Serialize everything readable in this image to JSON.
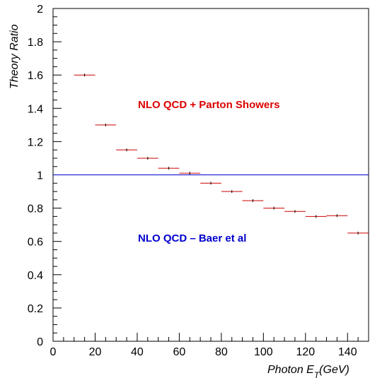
{
  "chart_data": {
    "type": "scatter",
    "xlabel_main": "Photon E",
    "xlabel_sub": "T",
    "xlabel_unit": "(GeV)",
    "ylabel": "Theory Ratio",
    "xlim": [
      0,
      150
    ],
    "ylim": [
      0,
      2
    ],
    "x_ticks": [
      "0",
      "20",
      "40",
      "60",
      "80",
      "100",
      "120",
      "140"
    ],
    "x_tick_values": [
      0,
      20,
      40,
      60,
      80,
      100,
      120,
      140
    ],
    "y_ticks": [
      "0",
      "0.2",
      "0.4",
      "0.6",
      "0.8",
      "1",
      "1.2",
      "1.4",
      "1.6",
      "1.8",
      "2"
    ],
    "y_tick_values": [
      0,
      0.2,
      0.4,
      0.6,
      0.8,
      1.0,
      1.2,
      1.4,
      1.6,
      1.8,
      2.0
    ],
    "grid": false,
    "reference_line": {
      "y": 1.0,
      "color": "#0000cc"
    },
    "series": [
      {
        "color": "#cc0000",
        "points": [
          {
            "x": 15,
            "y": 1.6,
            "xerr": 5
          },
          {
            "x": 25,
            "y": 1.3,
            "xerr": 5
          },
          {
            "x": 35,
            "y": 1.15,
            "xerr": 5
          },
          {
            "x": 45,
            "y": 1.1,
            "xerr": 5
          },
          {
            "x": 55,
            "y": 1.04,
            "xerr": 5
          },
          {
            "x": 65,
            "y": 1.01,
            "xerr": 5
          },
          {
            "x": 75,
            "y": 0.95,
            "xerr": 5
          },
          {
            "x": 85,
            "y": 0.9,
            "xerr": 5
          },
          {
            "x": 95,
            "y": 0.845,
            "xerr": 5
          },
          {
            "x": 105,
            "y": 0.8,
            "xerr": 5
          },
          {
            "x": 115,
            "y": 0.78,
            "xerr": 5
          },
          {
            "x": 125,
            "y": 0.75,
            "xerr": 5
          },
          {
            "x": 135,
            "y": 0.755,
            "xerr": 5
          },
          {
            "x": 145,
            "y": 0.65,
            "xerr": 5
          }
        ]
      }
    ],
    "annotations": [
      {
        "text": "NLO QCD + Parton Showers",
        "color": "#dd0000"
      },
      {
        "text": "NLO QCD – Baer et al",
        "color": "#0000cc"
      }
    ]
  }
}
